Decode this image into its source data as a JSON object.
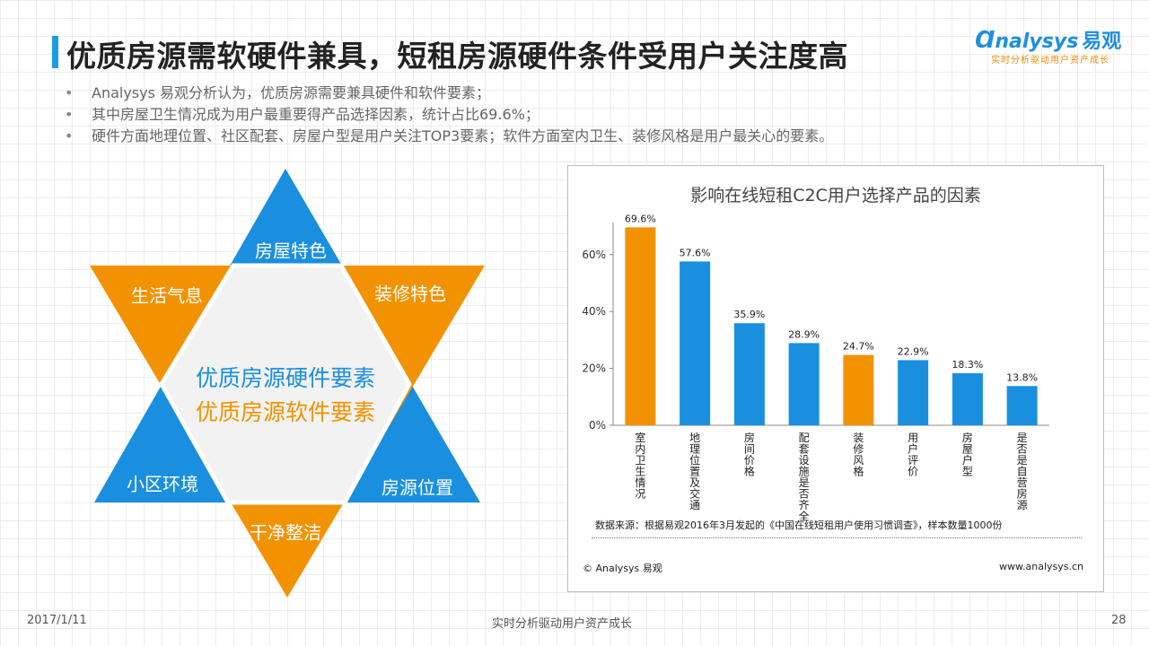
{
  "header": {
    "title": "优质房源需软硬件兼具，短租房源硬件条件受用户关注度高"
  },
  "logo": {
    "brand_en": "nalysys",
    "brand_cn": "易观",
    "tagline": "实时分析驱动用户资产成长"
  },
  "bullets": [
    "Analysys 易观分析认为，优质房源需要兼具硬件和软件要素；",
    "其中房屋卫生情况成为用户最重要得产品选择因素，统计占比69.6%；",
    "硬件方面地理位置、社区配套、房屋户型是用户关注TOP3要素；软件方面室内卫生、装修风格是用户最关心的要素。"
  ],
  "diagram": {
    "top_label": "房屋特色",
    "upper_left_label": "生活气息",
    "upper_right_label": "装修特色",
    "lower_left_label": "小区环境",
    "lower_right_label": "房源位置",
    "bottom_label": "干净整洁",
    "center_hardware": "优质房源硬件要素",
    "center_software": "优质房源软件要素",
    "colors": {
      "hardware": "#1a8fe0",
      "software": "#f39200",
      "center_fill": "#f2f2f2"
    }
  },
  "chart_data": {
    "type": "bar",
    "title": "影响在线短租C2C用户选择产品的因素",
    "categories": [
      "室内卫生情况",
      "地理位置及交通",
      "房间价格",
      "配套设施是否齐全",
      "装修风格",
      "用户评价",
      "房屋户型",
      "是否是自营房源"
    ],
    "values": [
      69.6,
      57.6,
      35.9,
      28.9,
      24.7,
      22.9,
      18.3,
      13.8
    ],
    "value_labels": [
      "69.6%",
      "57.6%",
      "35.9%",
      "28.9%",
      "24.7%",
      "22.9%",
      "18.3%",
      "13.8%"
    ],
    "bar_colors": [
      "#f39200",
      "#1a8fe0",
      "#1a8fe0",
      "#1a8fe0",
      "#f39200",
      "#1a8fe0",
      "#1a8fe0",
      "#1a8fe0"
    ],
    "yticks": [
      0,
      20,
      40,
      60
    ],
    "ytick_labels": [
      "0%",
      "20%",
      "40%",
      "60%"
    ],
    "ylim": [
      0,
      70
    ],
    "grid": false,
    "legend": "none"
  },
  "chart_footer": {
    "source": "数据来源：根据易观2016年3月发起的《中国在线短租用户使用习惯调查》，样本数量1000份",
    "copyright": "© Analysys 易观",
    "website": "www.analysys.cn"
  },
  "footer": {
    "date": "2017/1/11",
    "slogan": "实时分析驱动用户资产成长",
    "page_number": "28"
  }
}
